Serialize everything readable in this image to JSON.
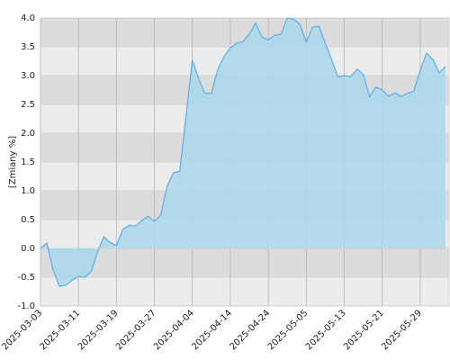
{
  "chart_data": {
    "type": "area",
    "y_label": "[Zmiany %]",
    "categories": [
      "2025-03-03",
      null,
      null,
      null,
      null,
      null,
      "2025-03-11",
      null,
      null,
      null,
      null,
      null,
      "2025-03-19",
      null,
      null,
      null,
      null,
      null,
      "2025-03-27",
      null,
      null,
      null,
      null,
      null,
      "2025-04-04",
      null,
      null,
      null,
      null,
      null,
      "2025-04-14",
      null,
      null,
      null,
      null,
      null,
      "2025-04-24",
      null,
      null,
      null,
      null,
      null,
      "2025-05-05",
      null,
      null,
      null,
      null,
      null,
      "2025-05-13",
      null,
      null,
      null,
      null,
      null,
      "2025-05-21",
      null,
      null,
      null,
      null,
      null,
      "2025-05-29",
      null,
      null,
      null,
      null
    ],
    "values": [
      0.0,
      0.09,
      -0.38,
      -0.66,
      -0.64,
      -0.55,
      -0.49,
      -0.5,
      -0.4,
      -0.07,
      0.2,
      0.1,
      0.05,
      0.33,
      0.4,
      0.39,
      0.48,
      0.56,
      0.47,
      0.58,
      1.08,
      1.31,
      1.34,
      2.3,
      3.27,
      2.94,
      2.69,
      2.69,
      3.1,
      3.33,
      3.48,
      3.56,
      3.59,
      3.72,
      3.91,
      3.67,
      3.62,
      3.7,
      3.72,
      4.0,
      3.98,
      3.89,
      3.58,
      3.84,
      3.86,
      3.56,
      3.28,
      2.98,
      3.0,
      2.98,
      3.11,
      3.02,
      2.63,
      2.8,
      2.75,
      2.64,
      2.7,
      2.64,
      2.69,
      2.73,
      3.09,
      3.39,
      3.28,
      3.05,
      3.16
    ],
    "color": "#5aaee8",
    "fill_color": "#aad8ec",
    "ylim": [
      -1,
      4
    ],
    "yticks": [
      {
        "value": -1,
        "label": "-1.0"
      },
      -0.5,
      {
        "value": 0,
        "label": "0.0"
      },
      0.5,
      {
        "value": 1,
        "label": "1.0"
      },
      1.5,
      {
        "value": 2,
        "label": "2.0"
      },
      2.5,
      {
        "value": 3,
        "label": "3.0"
      },
      3.5,
      {
        "value": 4,
        "label": "4.0"
      }
    ],
    "band_colors": [
      "#ececec",
      "#dcdcdc"
    ]
  }
}
